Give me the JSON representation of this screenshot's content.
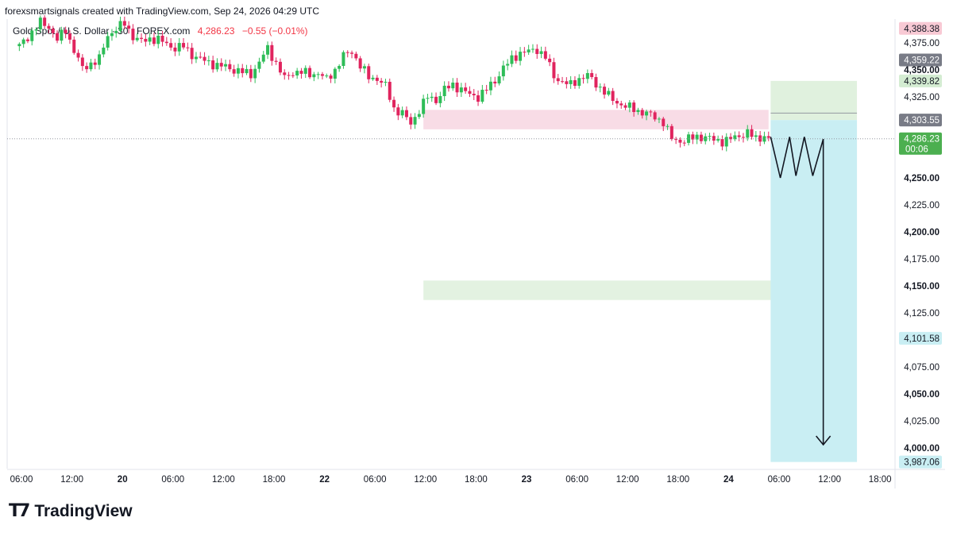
{
  "header": {
    "attribution": "forexsmartsignals created with TradingView.com, Sep 24, 2026 04:29 UTC"
  },
  "legend": {
    "symbol": "Gold Spot / U.S. Dollar · 30 · FOREX.com",
    "price": "4,286.23",
    "change": "−0.55 (−0.01%)"
  },
  "brand": {
    "name": "TradingView"
  },
  "colors": {
    "up": "#089981",
    "down": "#f23645",
    "upCandle": "#2ebd58",
    "downCandle": "#e0245e",
    "supply_zone": "#f8dce6",
    "demand_zone": "#e3f2e1",
    "target_box": "#c9eef3",
    "stop_box": "#def0dc",
    "grid": "#f0f3fa"
  },
  "chart_data": {
    "type": "candlestick",
    "title": "Gold Spot / U.S. Dollar · 30 · FOREX.com",
    "interval": "30",
    "last_price": 4286.23,
    "countdown": "00:06",
    "ylim": [
      3987.06,
      4400
    ],
    "y_ticks": [
      {
        "label": "4,375.00",
        "value": 4375,
        "bold": false
      },
      {
        "label": "4,350.00",
        "value": 4350,
        "bold": true
      },
      {
        "label": "4,325.00",
        "value": 4325,
        "bold": false
      },
      {
        "label": "4,250.00",
        "value": 4250,
        "bold": true
      },
      {
        "label": "4,225.00",
        "value": 4225,
        "bold": false
      },
      {
        "label": "4,200.00",
        "value": 4200,
        "bold": true
      },
      {
        "label": "4,175.00",
        "value": 4175,
        "bold": false
      },
      {
        "label": "4,150.00",
        "value": 4150,
        "bold": true
      },
      {
        "label": "4,125.00",
        "value": 4125,
        "bold": false
      },
      {
        "label": "4,075.00",
        "value": 4075,
        "bold": false
      },
      {
        "label": "4,050.00",
        "value": 4050,
        "bold": true
      },
      {
        "label": "4,025.00",
        "value": 4025,
        "bold": false
      },
      {
        "label": "4,000.00",
        "value": 4000,
        "bold": true
      }
    ],
    "price_labels": [
      {
        "label": "4,388.38",
        "value": 4388.38,
        "bg": "#f8c9d4",
        "fg": "#131722"
      },
      {
        "label": "4,359.22",
        "value": 4359.22,
        "bg": "#787b86",
        "fg": "#ffffff"
      },
      {
        "label": "4,339.82",
        "value": 4339.82,
        "bg": "#d4ecd2",
        "fg": "#131722"
      },
      {
        "label": "4,303.55",
        "value": 4303.55,
        "bg": "#787b86",
        "fg": "#ffffff"
      },
      {
        "label": "4,286.23",
        "value": 4286.23,
        "bg": "#4caf50",
        "fg": "#ffffff",
        "sub": "00:06"
      },
      {
        "label": "4,101.58",
        "value": 4101.58,
        "bg": "#c9eef3",
        "fg": "#131722"
      },
      {
        "label": "3,987.06",
        "value": 3987.06,
        "bg": "#c9eef3",
        "fg": "#131722"
      }
    ],
    "x_ticks": [
      {
        "label": "06:00",
        "t": 0.5,
        "bold": false
      },
      {
        "label": "12:00",
        "t": 12.5,
        "bold": false
      },
      {
        "label": "20",
        "t": 24.5,
        "bold": true
      },
      {
        "label": "06:00",
        "t": 36.5,
        "bold": false
      },
      {
        "label": "12:00",
        "t": 48.5,
        "bold": false
      },
      {
        "label": "18:00",
        "t": 60.5,
        "bold": false
      },
      {
        "label": "22",
        "t": 72.5,
        "bold": true
      },
      {
        "label": "06:00",
        "t": 84.5,
        "bold": false
      },
      {
        "label": "12:00",
        "t": 96.5,
        "bold": false
      },
      {
        "label": "18:00",
        "t": 108.5,
        "bold": false
      },
      {
        "label": "23",
        "t": 120.5,
        "bold": true
      },
      {
        "label": "06:00",
        "t": 132.5,
        "bold": false
      },
      {
        "label": "12:00",
        "t": 144.5,
        "bold": false
      },
      {
        "label": "18:00",
        "t": 156.5,
        "bold": false
      },
      {
        "label": "24",
        "t": 168.5,
        "bold": true
      },
      {
        "label": "06:00",
        "t": 180.5,
        "bold": false
      },
      {
        "label": "12:00",
        "t": 192.5,
        "bold": false
      },
      {
        "label": "18:00",
        "t": 204.5,
        "bold": false
      }
    ],
    "close_path": [
      [
        0,
        4372
      ],
      [
        3,
        4385
      ],
      [
        5,
        4394
      ],
      [
        7,
        4390
      ],
      [
        9,
        4378
      ],
      [
        11,
        4387
      ],
      [
        13,
        4368
      ],
      [
        15,
        4351
      ],
      [
        17,
        4356
      ],
      [
        19,
        4360
      ],
      [
        21,
        4382
      ],
      [
        23,
        4388
      ],
      [
        25,
        4393
      ],
      [
        27,
        4381
      ],
      [
        29,
        4376
      ],
      [
        31,
        4379
      ],
      [
        33,
        4378
      ],
      [
        35,
        4374
      ],
      [
        37,
        4370
      ],
      [
        39,
        4372
      ],
      [
        41,
        4364
      ],
      [
        43,
        4360
      ],
      [
        45,
        4357
      ],
      [
        47,
        4354
      ],
      [
        49,
        4353
      ],
      [
        51,
        4350
      ],
      [
        53,
        4348
      ],
      [
        55,
        4346
      ],
      [
        57,
        4357
      ],
      [
        59,
        4370
      ],
      [
        61,
        4356
      ],
      [
        63,
        4342
      ],
      [
        65,
        4348
      ],
      [
        67,
        4348
      ],
      [
        69,
        4346
      ],
      [
        71,
        4347
      ],
      [
        73,
        4341
      ],
      [
        75,
        4350
      ],
      [
        77,
        4363
      ],
      [
        79,
        4367
      ],
      [
        81,
        4354
      ],
      [
        83,
        4343
      ],
      [
        85,
        4342
      ],
      [
        87,
        4335
      ],
      [
        89,
        4314
      ],
      [
        91,
        4310
      ],
      [
        93,
        4300
      ],
      [
        95,
        4313
      ],
      [
        97,
        4325
      ],
      [
        99,
        4322
      ],
      [
        101,
        4332
      ],
      [
        103,
        4336
      ],
      [
        105,
        4332
      ],
      [
        107,
        4327
      ],
      [
        109,
        4325
      ],
      [
        111,
        4332
      ],
      [
        113,
        4340
      ],
      [
        115,
        4352
      ],
      [
        117,
        4360
      ],
      [
        119,
        4366
      ],
      [
        121,
        4367
      ],
      [
        123,
        4369
      ],
      [
        125,
        4362
      ],
      [
        127,
        4344
      ],
      [
        129,
        4339
      ],
      [
        131,
        4336
      ],
      [
        133,
        4342
      ],
      [
        135,
        4345
      ],
      [
        137,
        4337
      ],
      [
        139,
        4330
      ],
      [
        141,
        4322
      ],
      [
        143,
        4318
      ],
      [
        145,
        4315
      ],
      [
        147,
        4312
      ],
      [
        149,
        4310
      ],
      [
        151,
        4306
      ],
      [
        153,
        4302
      ],
      [
        155,
        4286
      ],
      [
        157,
        4284
      ],
      [
        159,
        4286
      ],
      [
        161,
        4288
      ],
      [
        163,
        4288
      ],
      [
        165,
        4285
      ],
      [
        167,
        4284
      ],
      [
        169,
        4286
      ],
      [
        171,
        4289
      ],
      [
        173,
        4292
      ],
      [
        175,
        4286
      ],
      [
        177,
        4289
      ],
      [
        178,
        4286
      ]
    ],
    "zones": [
      {
        "name": "supply",
        "t0": 96,
        "t1": 178,
        "top": 4313,
        "bottom": 4295,
        "color": "#f8dce6"
      },
      {
        "name": "demand",
        "t0": 96,
        "t1": 199,
        "top": 4155,
        "bottom": 4137,
        "color": "#e3f2e1"
      }
    ],
    "position": {
      "type": "short",
      "t0": 178.5,
      "t1": 199,
      "entry": 4303.55,
      "stop": 4339.82,
      "target": 3987.06,
      "midline": 4310
    },
    "projection": [
      [
        178.5,
        4288
      ],
      [
        180.8,
        4250
      ],
      [
        183,
        4288
      ],
      [
        184.5,
        4252
      ],
      [
        186.5,
        4288
      ],
      [
        188.5,
        4252
      ],
      [
        191,
        4286
      ],
      [
        191,
        4003
      ]
    ]
  }
}
